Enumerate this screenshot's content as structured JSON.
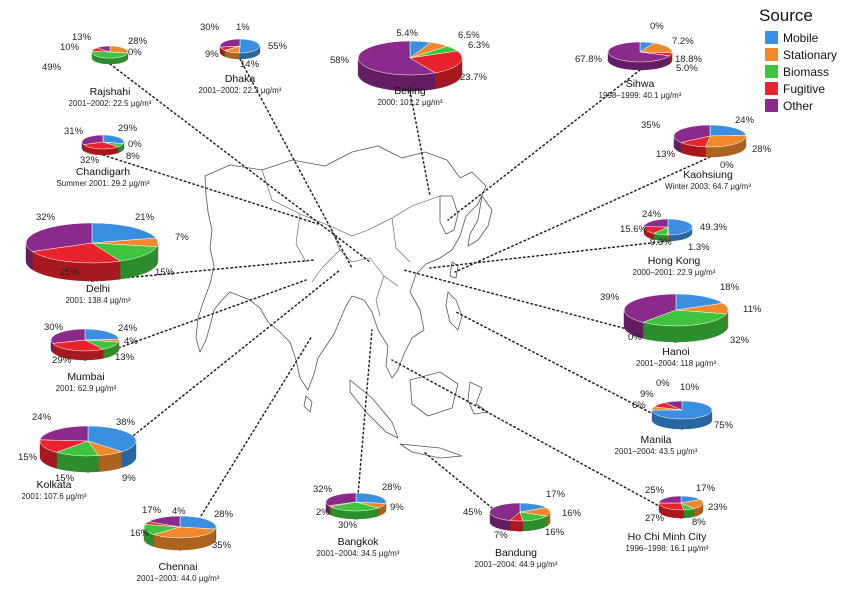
{
  "legend": {
    "title": "Source",
    "items": [
      {
        "label": "Mobile",
        "color": "#3b8fe0"
      },
      {
        "label": "Stationary",
        "color": "#f0892c"
      },
      {
        "label": "Biomass",
        "color": "#3ec43e"
      },
      {
        "label": "Fugitive",
        "color": "#e8232b"
      },
      {
        "label": "Other",
        "color": "#8a2a8a"
      }
    ]
  },
  "cities": [
    {
      "name": "Rajshahi",
      "info": "2001–2002: 22.5 μg/m³",
      "shares": [
        {
          "s": "Mobile",
          "v": 0,
          "label": "0%"
        },
        {
          "s": "Stationary",
          "v": 28,
          "label": "28%"
        },
        {
          "s": "Biomass",
          "v": 49,
          "label": "49%"
        },
        {
          "s": "Fugitive",
          "v": 10,
          "label": "10%"
        },
        {
          "s": "Other",
          "v": 13,
          "label": "13%"
        }
      ]
    },
    {
      "name": "Dhaka",
      "info": "2001–2002: 22.3 μg/m³",
      "shares": [
        {
          "s": "Mobile",
          "v": 55,
          "label": "55%"
        },
        {
          "s": "Stationary",
          "v": 14,
          "label": "14%"
        },
        {
          "s": "Biomass",
          "v": 1,
          "label": "1%"
        },
        {
          "s": "Fugitive",
          "v": 9,
          "label": "9%"
        },
        {
          "s": "Other",
          "v": 30,
          "label": "30%"
        }
      ]
    },
    {
      "name": "Beijing",
      "info": "2000: 101.2 μg/m³",
      "shares": [
        {
          "s": "Mobile",
          "v": 6.5,
          "label": "6.5%"
        },
        {
          "s": "Stationary",
          "v": 6.3,
          "label": "6.3%"
        },
        {
          "s": "Biomass",
          "v": 5.4,
          "label": "5.4%"
        },
        {
          "s": "Fugitive",
          "v": 23.7,
          "label": "23.7%"
        },
        {
          "s": "Other",
          "v": 58,
          "label": "58%"
        }
      ]
    },
    {
      "name": "Sihwa",
      "info": "1998–1999: 40.1 μg/m³",
      "shares": [
        {
          "s": "Mobile",
          "v": 7.2,
          "label": "7.2%"
        },
        {
          "s": "Stationary",
          "v": 18.8,
          "label": "18.8%"
        },
        {
          "s": "Biomass",
          "v": 0,
          "label": "0%"
        },
        {
          "s": "Fugitive",
          "v": 5.0,
          "label": "5.0%"
        },
        {
          "s": "Other",
          "v": 67.8,
          "label": "67.8%"
        }
      ]
    },
    {
      "name": "Chandigarh",
      "info": "Summer 2001: 29.2 μg/m³",
      "shares": [
        {
          "s": "Mobile",
          "v": 29,
          "label": "29%"
        },
        {
          "s": "Stationary",
          "v": 0,
          "label": "0%"
        },
        {
          "s": "Biomass",
          "v": 8,
          "label": "8%"
        },
        {
          "s": "Fugitive",
          "v": 32,
          "label": "32%"
        },
        {
          "s": "Other",
          "v": 31,
          "label": "31%"
        }
      ]
    },
    {
      "name": "Kaohsiung",
      "info": "Winter 2003: 64.7 μg/m³",
      "shares": [
        {
          "s": "Mobile",
          "v": 24,
          "label": "24%"
        },
        {
          "s": "Stationary",
          "v": 28,
          "label": "28%"
        },
        {
          "s": "Biomass",
          "v": 0,
          "label": "0%"
        },
        {
          "s": "Fugitive",
          "v": 13,
          "label": "13%"
        },
        {
          "s": "Other",
          "v": 35,
          "label": "35%"
        }
      ]
    },
    {
      "name": "Delhi",
      "info": "2001: 138.4 μg/m³",
      "shares": [
        {
          "s": "Mobile",
          "v": 21,
          "label": "21%"
        },
        {
          "s": "Stationary",
          "v": 7,
          "label": "7%"
        },
        {
          "s": "Biomass",
          "v": 15,
          "label": "15%"
        },
        {
          "s": "Fugitive",
          "v": 25,
          "label": "25%"
        },
        {
          "s": "Other",
          "v": 32,
          "label": "32%"
        }
      ]
    },
    {
      "name": "Hong Kong",
      "info": "2000–2001: 22.9 μg/m³",
      "shares": [
        {
          "s": "Mobile",
          "v": 49.3,
          "label": "49.3%"
        },
        {
          "s": "Stationary",
          "v": 1.3,
          "label": "1.3%"
        },
        {
          "s": "Biomass",
          "v": 9.3,
          "label": "9.3%"
        },
        {
          "s": "Fugitive",
          "v": 15.6,
          "label": "15.6%"
        },
        {
          "s": "Other",
          "v": 24,
          "label": "24%"
        }
      ]
    },
    {
      "name": "Mumbai",
      "info": "2001: 62.9 μg/m³",
      "shares": [
        {
          "s": "Mobile",
          "v": 24,
          "label": "24%"
        },
        {
          "s": "Stationary",
          "v": 4,
          "label": "4%"
        },
        {
          "s": "Biomass",
          "v": 13,
          "label": "13%"
        },
        {
          "s": "Fugitive",
          "v": 29,
          "label": "29%"
        },
        {
          "s": "Other",
          "v": 30,
          "label": "30%"
        }
      ]
    },
    {
      "name": "Hanoi",
      "info": "2001–2004: 118 μg/m³",
      "shares": [
        {
          "s": "Mobile",
          "v": 18,
          "label": "18%"
        },
        {
          "s": "Stationary",
          "v": 11,
          "label": "11%"
        },
        {
          "s": "Biomass",
          "v": 32,
          "label": "32%"
        },
        {
          "s": "Fugitive",
          "v": 0,
          "label": "0%"
        },
        {
          "s": "Other",
          "v": 39,
          "label": "39%"
        }
      ]
    },
    {
      "name": "Manila",
      "info": "2001–2004: 43.5 μg/m³",
      "shares": [
        {
          "s": "Mobile",
          "v": 75,
          "label": "75%"
        },
        {
          "s": "Stationary",
          "v": 6,
          "label": "6%"
        },
        {
          "s": "Biomass",
          "v": 0,
          "label": "0%"
        },
        {
          "s": "Fugitive",
          "v": 9,
          "label": "9%"
        },
        {
          "s": "Other",
          "v": 10,
          "label": "10%"
        }
      ]
    },
    {
      "name": "Kolkata",
      "info": "2001: 107.6 μg/m³",
      "shares": [
        {
          "s": "Mobile",
          "v": 38,
          "label": "38%"
        },
        {
          "s": "Stationary",
          "v": 9,
          "label": "9%"
        },
        {
          "s": "Biomass",
          "v": 15,
          "label": "15%"
        },
        {
          "s": "Fugitive",
          "v": 15,
          "label": "15%"
        },
        {
          "s": "Other",
          "v": 24,
          "label": "24%"
        }
      ]
    },
    {
      "name": "Chennai",
      "info": "2001–2003: 44.0 μg/m³",
      "shares": [
        {
          "s": "Mobile",
          "v": 28,
          "label": "28%"
        },
        {
          "s": "Stationary",
          "v": 35,
          "label": "35%"
        },
        {
          "s": "Biomass",
          "v": 16,
          "label": "16%"
        },
        {
          "s": "Fugitive",
          "v": 4,
          "label": "4%"
        },
        {
          "s": "Other",
          "v": 17,
          "label": "17%"
        }
      ]
    },
    {
      "name": "Bangkok",
      "info": "2001–2004: 34.5 μg/m³",
      "shares": [
        {
          "s": "Mobile",
          "v": 28,
          "label": "28%"
        },
        {
          "s": "Stationary",
          "v": 9,
          "label": "9%"
        },
        {
          "s": "Biomass",
          "v": 30,
          "label": "30%"
        },
        {
          "s": "Fugitive",
          "v": 2,
          "label": "2%"
        },
        {
          "s": "Other",
          "v": 32,
          "label": "32%"
        }
      ]
    },
    {
      "name": "Bandung",
      "info": "2001–2004: 44.9 μg/m³",
      "shares": [
        {
          "s": "Mobile",
          "v": 17,
          "label": "17%"
        },
        {
          "s": "Stationary",
          "v": 16,
          "label": "16%"
        },
        {
          "s": "Biomass",
          "v": 16,
          "label": "16%"
        },
        {
          "s": "Fugitive",
          "v": 7,
          "label": "7%"
        },
        {
          "s": "Other",
          "v": 45,
          "label": "45%"
        }
      ]
    },
    {
      "name": "Ho Chi Minh City",
      "info": "1996–1998: 16.1 μg/m³",
      "shares": [
        {
          "s": "Mobile",
          "v": 17,
          "label": "17%"
        },
        {
          "s": "Stationary",
          "v": 23,
          "label": "23%"
        },
        {
          "s": "Biomass",
          "v": 8,
          "label": "8%"
        },
        {
          "s": "Fugitive",
          "v": 27,
          "label": "27%"
        },
        {
          "s": "Other",
          "v": 25,
          "label": "25%"
        }
      ]
    }
  ]
}
